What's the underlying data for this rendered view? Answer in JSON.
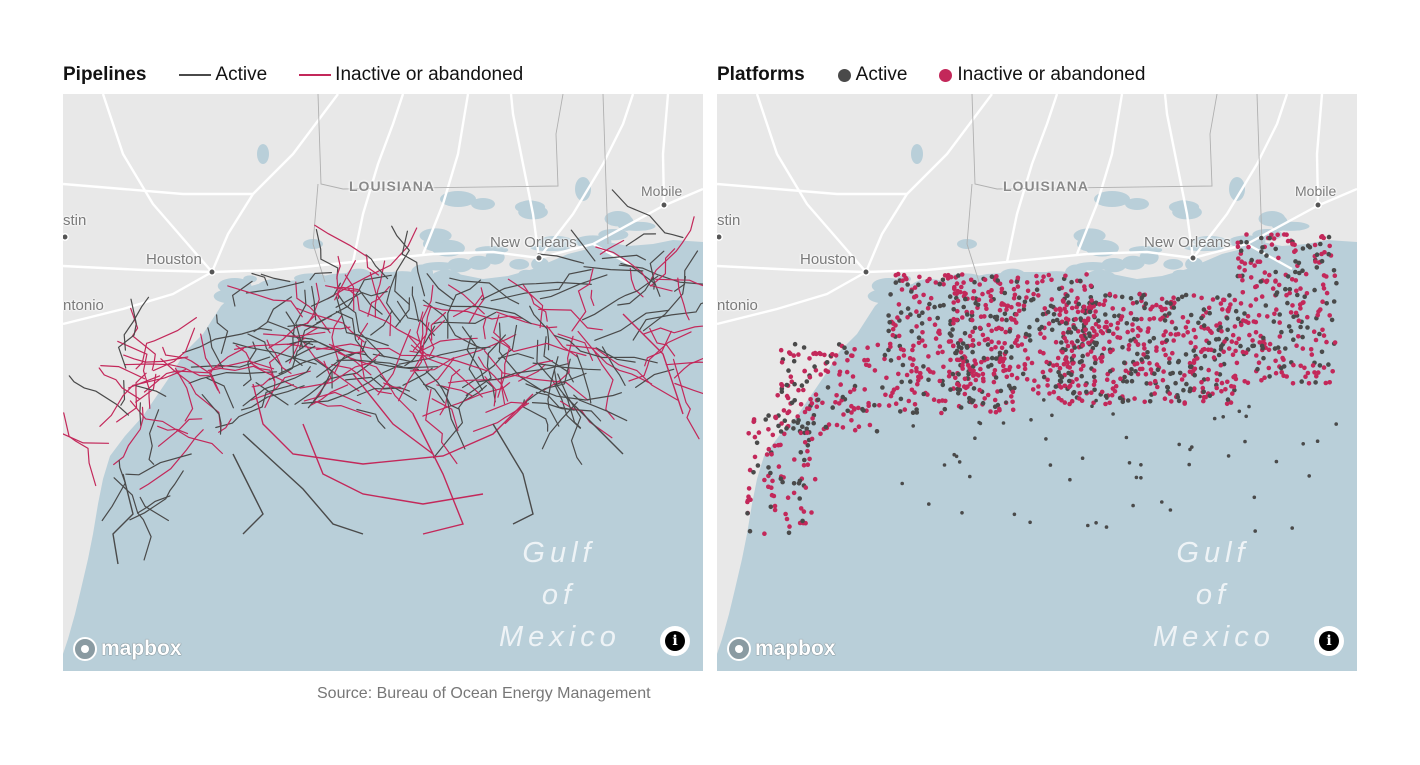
{
  "panels": [
    {
      "id": "pipelines",
      "title": "Pipelines",
      "legend": [
        {
          "label": "Active",
          "color": "#4a4a4a",
          "swatch": "line"
        },
        {
          "label": "Inactive or abandoned",
          "color": "#c3285a",
          "swatch": "line"
        }
      ],
      "labels": {
        "state": "LOUISIANA",
        "city_houston": "Houston",
        "city_new_orleans": "New Orleans",
        "city_mobile": "Mobile",
        "city_austin": "stin",
        "city_san_antonio": "ntonio",
        "water_line1": "Gulf of",
        "water_line2": "Mexico"
      },
      "attribution": {
        "logo_text": "mapbox",
        "logo_icon": "mapbox-logo-icon",
        "info_icon": "info-icon",
        "info_glyph": "i"
      }
    },
    {
      "id": "platforms",
      "title": "Platforms",
      "legend": [
        {
          "label": "Active",
          "color": "#4a4a4a",
          "swatch": "dot"
        },
        {
          "label": "Inactive or abandoned",
          "color": "#c3285a",
          "swatch": "dot"
        }
      ],
      "labels": {
        "state": "LOUISIANA",
        "city_houston": "Houston",
        "city_new_orleans": "New Orleans",
        "city_mobile": "Mobile",
        "city_austin": "stin",
        "city_san_antonio": "ntonio",
        "water_line1": "Gulf of",
        "water_line2": "Mexico"
      },
      "attribution": {
        "logo_text": "mapbox",
        "logo_icon": "mapbox-logo-icon",
        "info_icon": "info-icon",
        "info_glyph": "i"
      }
    }
  ],
  "source": "Source: Bureau of Ocean Energy Management",
  "colors": {
    "land": "#e8e8e8",
    "water": "#b9cfd9",
    "roads": "#ffffff",
    "active": "#4a4a4a",
    "inactive": "#c3285a"
  }
}
